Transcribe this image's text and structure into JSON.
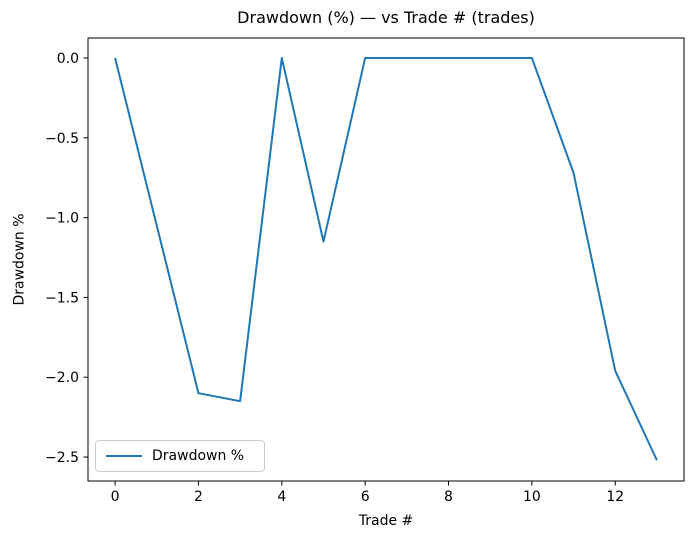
{
  "figure": {
    "background": "#ffffff"
  },
  "chart_data": {
    "type": "line",
    "title": "Drawdown (%) — vs Trade # (trades)",
    "xlabel": "Trade #",
    "ylabel": "Drawdown %",
    "x": [
      0,
      1,
      2,
      3,
      4,
      5,
      6,
      7,
      8,
      9,
      10,
      11,
      12,
      13
    ],
    "series": [
      {
        "name": "Drawdown %",
        "color": "#1f77b4",
        "values": [
          0.0,
          -1.05,
          -2.1,
          -2.15,
          0.0,
          -1.15,
          0.0,
          0.0,
          0.0,
          0.0,
          0.0,
          -0.72,
          -1.96,
          -2.52
        ]
      }
    ],
    "xlim": [
      -0.65,
      13.65
    ],
    "ylim": [
      -2.65,
      0.125
    ],
    "xticks": [
      0,
      2,
      4,
      6,
      8,
      10,
      12
    ],
    "xtick_labels": [
      "0",
      "2",
      "4",
      "6",
      "8",
      "10",
      "12"
    ],
    "yticks": [
      0,
      -0.5,
      -1.0,
      -1.5,
      -2.0,
      -2.5
    ],
    "ytick_labels": [
      "0.0",
      "−0.5",
      "−1.0",
      "−1.5",
      "−2.0",
      "−2.5"
    ],
    "legend": {
      "position": "lower-left",
      "entries": [
        "Drawdown %"
      ]
    },
    "grid": false,
    "axes_color": "#000000",
    "line_width": 2
  }
}
